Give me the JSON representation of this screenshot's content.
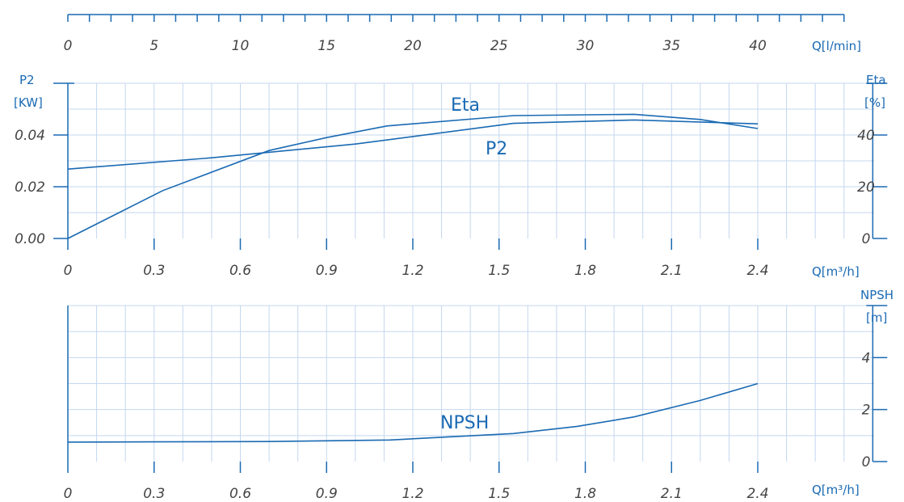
{
  "colors": {
    "line": "#1a6ab3",
    "grid": "#c4d7ef",
    "tick_text": "#444444"
  },
  "chart_data": [
    {
      "type": "table",
      "name": "flow-scale",
      "x_unit_label": "Q[l/min]",
      "xlim": [
        0,
        40
      ],
      "tick_labels": [
        "0",
        "5",
        "10",
        "15",
        "20",
        "25",
        "30",
        "35",
        "40"
      ],
      "tick_values": [
        0,
        5,
        10,
        15,
        20,
        25,
        30,
        35,
        40
      ]
    },
    {
      "type": "line",
      "x_unit_label": "Q[m³/h]",
      "xlim": [
        0,
        2.4
      ],
      "x_tick_labels": [
        "0",
        "0.3",
        "0.6",
        "0.9",
        "1.2",
        "1.5",
        "1.8",
        "2.1",
        "2.4"
      ],
      "x_tick_values": [
        0,
        0.3,
        0.6,
        0.9,
        1.2,
        1.5,
        1.8,
        2.1,
        2.4
      ],
      "left_axis": {
        "label_line1": "P2",
        "label_line2": "[KW]",
        "ylim": [
          0,
          0.06
        ],
        "tick_labels": [
          "0.00",
          "0.02",
          "0.04"
        ],
        "tick_values": [
          0,
          0.02,
          0.04
        ]
      },
      "right_axis": {
        "label_line1": "Eta",
        "label_line2": "[%]",
        "ylim": [
          0,
          60
        ],
        "tick_labels": [
          "0",
          "20",
          "40"
        ],
        "tick_values": [
          0,
          20,
          40
        ]
      },
      "grid": true,
      "series": [
        {
          "name": "Eta",
          "axis": "right",
          "x": [
            0,
            0.33,
            0.7,
            0.9,
            1.11,
            1.55,
            1.97,
            2.2,
            2.4
          ],
          "y": [
            0,
            18.5,
            34,
            39,
            43.5,
            47.5,
            48,
            46,
            42.5
          ]
        },
        {
          "name": "P2",
          "axis": "left",
          "x": [
            0,
            0.5,
            1.0,
            1.55,
            1.97,
            2.4
          ],
          "y": [
            0.0268,
            0.0312,
            0.0365,
            0.0445,
            0.0458,
            0.0443
          ]
        }
      ]
    },
    {
      "type": "line",
      "x_unit_label": "Q[m³/h]",
      "xlim": [
        0,
        2.4
      ],
      "x_tick_labels": [
        "0",
        "0.3",
        "0.6",
        "0.9",
        "1.2",
        "1.5",
        "1.8",
        "2.1",
        "2.4"
      ],
      "x_tick_values": [
        0,
        0.3,
        0.6,
        0.9,
        1.2,
        1.5,
        1.8,
        2.1,
        2.4
      ],
      "right_axis": {
        "label_line1": "NPSH",
        "label_line2": "[m]",
        "ylim": [
          0,
          6
        ],
        "tick_labels": [
          "0",
          "2",
          "4"
        ],
        "tick_values": [
          0,
          2,
          4
        ]
      },
      "grid": true,
      "series": [
        {
          "name": "NPSH",
          "x": [
            0,
            0.3,
            0.7,
            0.9,
            1.12,
            1.55,
            1.77,
            1.97,
            2.2,
            2.4
          ],
          "y": [
            0.75,
            0.76,
            0.77,
            0.8,
            0.83,
            1.08,
            1.35,
            1.72,
            2.35,
            3.0
          ]
        }
      ]
    }
  ]
}
